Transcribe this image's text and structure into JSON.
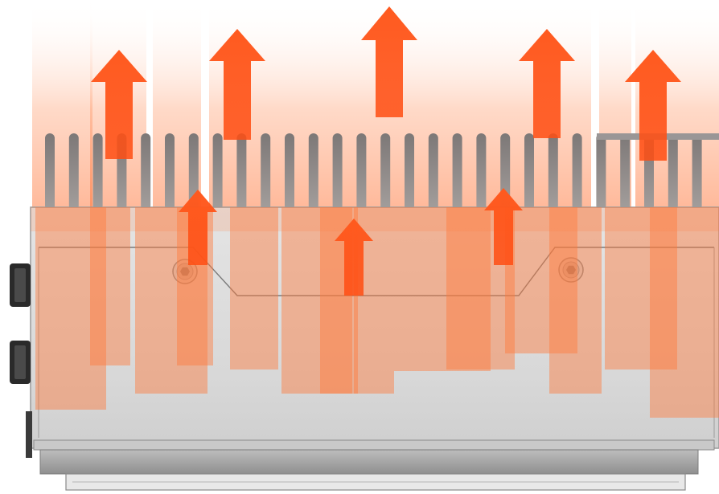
{
  "illustration": {
    "subject": "heatsink-enclosure-thermal-dissipation",
    "palette": {
      "heat_orange": "#ff5a1f",
      "heat_glow": "#ff7a3c",
      "chassis_silver": "#d9d9d9",
      "chassis_edge": "#8c8c8c",
      "fin_gray": "#8e8a88",
      "base_plate": "#a8a8a8",
      "connector_dark": "#2a2a2a"
    },
    "icons": {
      "large_arrow": "arrow-up-icon",
      "small_arrow": "arrow-up-icon",
      "screw": "hex-screw-icon"
    },
    "large_arrow_count": 5,
    "small_arrow_count": 3,
    "fin_count": 28,
    "screw_count": 2,
    "connector_count": 2
  }
}
